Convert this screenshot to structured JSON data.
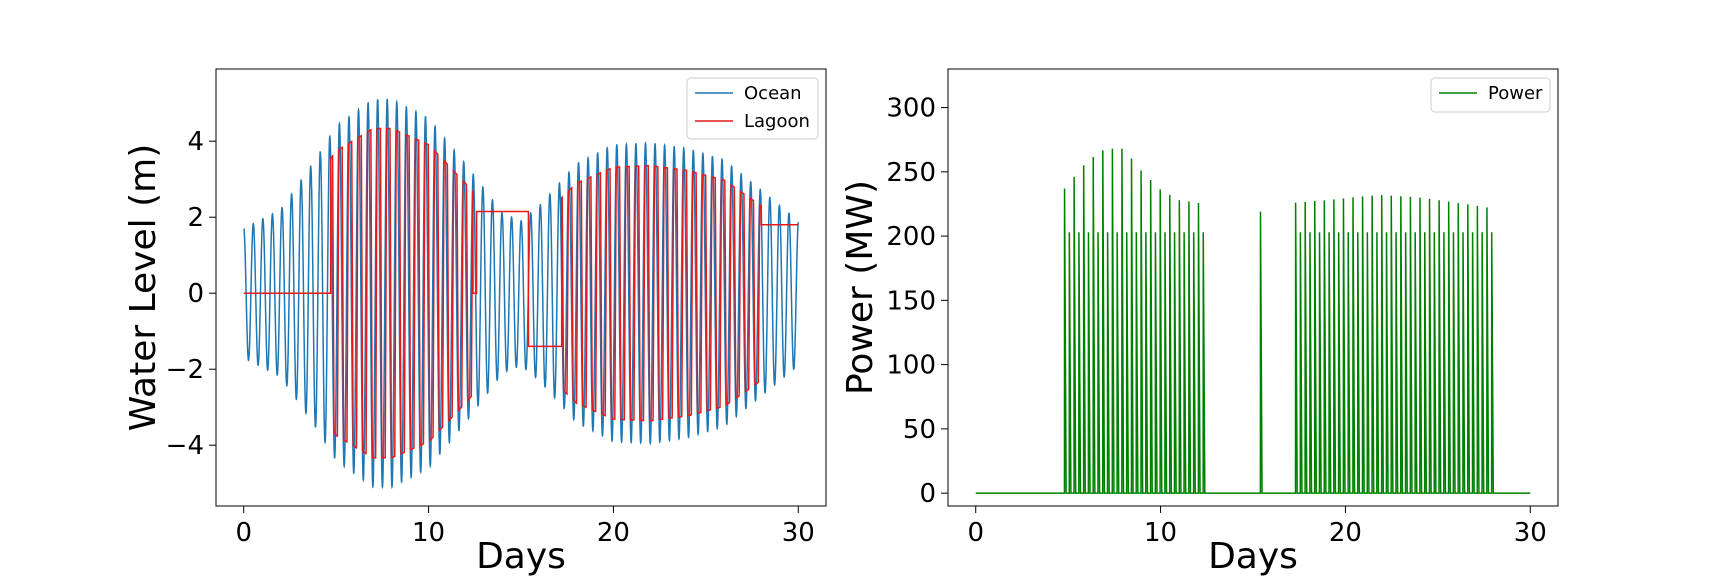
{
  "colors": {
    "ocean": "#1f77b4",
    "lagoon": "#e41a1c",
    "power": "#008000"
  },
  "chart_data": [
    {
      "type": "line",
      "title": "",
      "xlabel": "Days",
      "ylabel": "Water Level (m)",
      "xlim": [
        -1.5,
        31.5
      ],
      "ylim": [
        -5.6,
        5.9
      ],
      "xticks": [
        0,
        10,
        20,
        30
      ],
      "yticks": [
        -4,
        -2,
        0,
        2,
        4
      ],
      "xtick_labels": [
        "0",
        "10",
        "20",
        "30"
      ],
      "ytick_labels": [
        "−4",
        "−2",
        "0",
        "2",
        "4"
      ],
      "legend": [
        "Ocean",
        "Lagoon"
      ],
      "legend_loc": "upper right",
      "series": [
        {
          "name": "Ocean",
          "description": "semidiurnal tide, period 0.5175 d, envelope peaks",
          "period_days": 0.5175,
          "envelope": {
            "x": [
              0,
              2,
              4,
              5,
              7,
              8,
              10,
              12,
              14,
              15,
              16,
              18,
              20,
              22,
              24,
              26,
              28,
              30
            ],
            "amplitude": [
              1.7,
              2.2,
              3.6,
              4.4,
              5.1,
              5.1,
              4.6,
              3.4,
              2.1,
              1.9,
              2.3,
              3.4,
              3.9,
              3.95,
              3.8,
              3.5,
              2.7,
              1.9
            ]
          }
        },
        {
          "name": "Lagoon",
          "holding_segments": [
            {
              "x0": 0,
              "x1": 4.7,
              "y": 0
            },
            {
              "x0": 12.6,
              "x1": 15.4,
              "y": 2.15
            },
            {
              "x0": 15.4,
              "x1": 17.2,
              "y": -1.4
            },
            {
              "x0": 28.0,
              "x1": 30.0,
              "y": 1.8
            }
          ],
          "active_periods": [
            [
              4.7,
              12.4
            ],
            [
              17.2,
              28.0
            ]
          ],
          "lagoon_fraction_of_ocean": 0.85
        }
      ]
    },
    {
      "type": "line",
      "title": "",
      "xlabel": "Days",
      "ylabel": "Power (MW)",
      "xlim": [
        -1.5,
        31.5
      ],
      "ylim": [
        -10,
        330
      ],
      "xticks": [
        0,
        10,
        20,
        30
      ],
      "yticks": [
        0,
        50,
        100,
        150,
        200,
        250,
        300
      ],
      "xtick_labels": [
        "0",
        "10",
        "20",
        "30"
      ],
      "ytick_labels": [
        "0",
        "50",
        "100",
        "150",
        "200",
        "250",
        "300"
      ],
      "legend": [
        "Power"
      ],
      "legend_loc": "upper right",
      "series": [
        {
          "name": "Power",
          "pulse_period_days": 0.5175,
          "active_periods": [
            [
              4.7,
              12.4
            ],
            [
              17.2,
              28.0
            ]
          ],
          "high_peak_envelope": {
            "x": [
              4.8,
              6,
              7,
              8,
              9,
              10,
              11,
              12.4,
              17.3,
              19,
              21,
              22,
              24,
              26,
              27.8
            ],
            "y": [
              237,
              258,
              268,
              268,
              250,
              236,
              228,
              225,
              226,
              228,
              231,
              232,
              230,
              226,
              222
            ]
          },
          "low_peak_value": 203,
          "isolated_pulse": {
            "x": 15.4,
            "y": 219
          },
          "baseline": 0
        }
      ]
    }
  ]
}
